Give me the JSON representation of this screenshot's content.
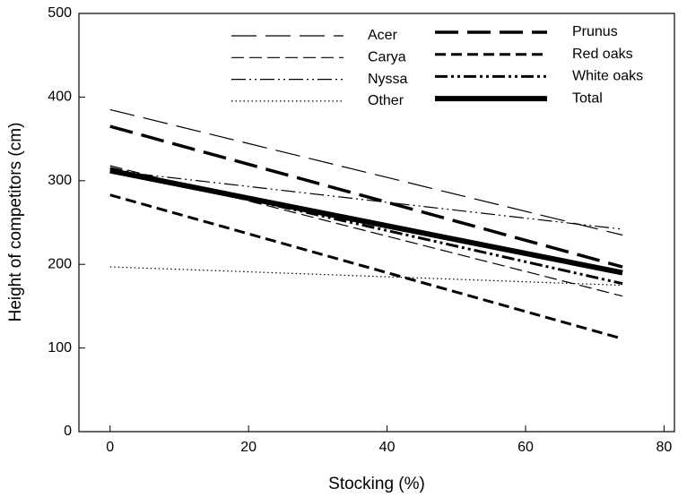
{
  "chart_data": {
    "type": "line",
    "x_label": "Stocking (%)",
    "y_label": "Height of competitors (cm)",
    "x": [
      0,
      74
    ],
    "series": [
      {
        "name": "Acer",
        "color": "#000000",
        "values": [
          385,
          235
        ]
      },
      {
        "name": "Carya",
        "color": "#000000",
        "values": [
          318,
          162
        ]
      },
      {
        "name": "Nyssa",
        "color": "#000000",
        "values": [
          312,
          242
        ]
      },
      {
        "name": "Other",
        "color": "#000000",
        "values": [
          197,
          175
        ]
      },
      {
        "name": "Prunus",
        "color": "#000000",
        "values": [
          365,
          197
        ]
      },
      {
        "name": "Red oaks",
        "color": "#000000",
        "values": [
          283,
          111
        ]
      },
      {
        "name": "White oaks",
        "color": "#000000",
        "values": [
          315,
          177
        ]
      },
      {
        "name": "Total",
        "color": "#000000",
        "values": [
          312,
          190
        ]
      }
    ],
    "xlim": [
      -4.5,
      81.5
    ],
    "xticks": [
      0,
      20,
      40,
      60,
      80
    ],
    "ylim": [
      0,
      500
    ],
    "yticks": [
      0,
      100,
      200,
      300,
      400,
      500
    ]
  }
}
